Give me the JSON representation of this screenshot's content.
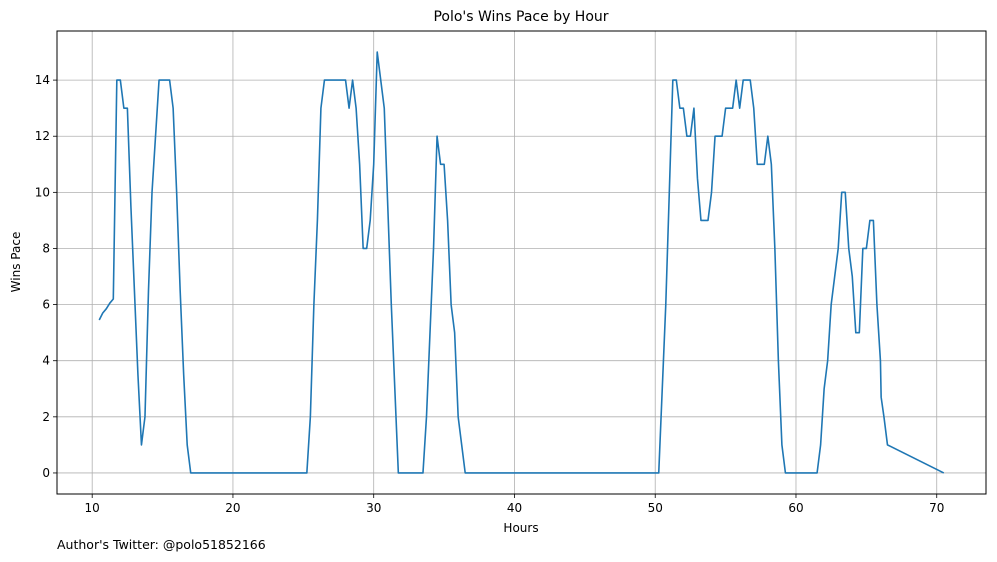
{
  "chart_data": {
    "type": "line",
    "title": "Polo's Wins Pace by Hour",
    "xlabel": "Hours",
    "ylabel": "Wins Pace",
    "xlim": [
      7.5,
      73.5
    ],
    "ylim": [
      -0.75,
      15.75
    ],
    "xticks": [
      10,
      20,
      30,
      40,
      50,
      60,
      70
    ],
    "yticks": [
      0,
      2,
      4,
      6,
      8,
      10,
      12,
      14
    ],
    "grid": true,
    "line_color": "#1f77b4",
    "series": [
      {
        "x": [
          10.5,
          10.75,
          11.0,
          11.25,
          11.5,
          11.75,
          12.0,
          12.25,
          12.5,
          12.75,
          13.0,
          13.25,
          13.5,
          13.75,
          14.0,
          14.25,
          14.5,
          14.75,
          15.0,
          15.25,
          15.5,
          15.75,
          16.0,
          16.25,
          16.5,
          16.75,
          17.0,
          17.25,
          25.25,
          25.5,
          25.75,
          26.0,
          26.25,
          26.5,
          26.75,
          27.0,
          27.25,
          27.5,
          27.75,
          28.0,
          28.25,
          28.5,
          28.75,
          29.0,
          29.25,
          29.5,
          29.75,
          30.0,
          30.25,
          30.5,
          30.75,
          31.0,
          31.25,
          31.5,
          31.75,
          32.0,
          33.5,
          33.75,
          34.0,
          34.25,
          34.5,
          34.75,
          35.0,
          35.25,
          35.5,
          35.75,
          36.0,
          36.25,
          36.5,
          36.75,
          50.25,
          50.5,
          50.75,
          51.0,
          51.25,
          51.5,
          51.75,
          52.0,
          52.25,
          52.5,
          52.75,
          53.0,
          53.25,
          53.5,
          53.75,
          54.0,
          54.25,
          54.5,
          54.75,
          55.0,
          55.25,
          55.5,
          55.75,
          56.0,
          56.25,
          56.5,
          56.75,
          57.0,
          57.25,
          57.5,
          57.75,
          58.0,
          58.25,
          58.5,
          58.75,
          59.0,
          59.25,
          61.5,
          61.75,
          62.0,
          62.25,
          62.5,
          62.75,
          63.0,
          63.25,
          63.5,
          63.75,
          64.0,
          64.25,
          64.5,
          64.75,
          65.0,
          65.25,
          65.5,
          65.75,
          66.0,
          66.05,
          66.25,
          66.5,
          70.5
        ],
        "y": [
          5.45,
          5.7,
          5.85,
          6.05,
          6.2,
          14.0,
          14.0,
          13.0,
          13.0,
          9.5,
          6.5,
          3.5,
          1.0,
          2.0,
          6.5,
          10.0,
          12.0,
          14.0,
          14.0,
          14.0,
          14.0,
          13.0,
          10.0,
          6.5,
          3.5,
          1.0,
          0.0,
          0.0,
          0.0,
          2.0,
          6.0,
          9.0,
          13.0,
          14.0,
          14.0,
          14.0,
          14.0,
          14.0,
          14.0,
          14.0,
          13.0,
          14.0,
          13.0,
          11.0,
          8.0,
          8.0,
          9.0,
          11.0,
          15.0,
          14.0,
          13.0,
          9.5,
          6.0,
          3.0,
          0.0,
          0.0,
          0.0,
          2.0,
          5.0,
          8.0,
          12.0,
          11.0,
          11.0,
          9.0,
          6.0,
          5.0,
          2.0,
          1.0,
          0.0,
          0.0,
          0.0,
          3.0,
          6.0,
          10.0,
          14.0,
          14.0,
          13.0,
          13.0,
          12.0,
          12.0,
          13.0,
          10.5,
          9.0,
          9.0,
          9.0,
          10.0,
          12.0,
          12.0,
          12.0,
          13.0,
          13.0,
          13.0,
          14.0,
          13.0,
          14.0,
          14.0,
          14.0,
          13.0,
          11.0,
          11.0,
          11.0,
          12.0,
          11.0,
          8.0,
          4.0,
          1.0,
          0.0,
          0.0,
          1.0,
          3.0,
          4.0,
          6.0,
          7.0,
          8.0,
          10.0,
          10.0,
          8.0,
          7.0,
          5.0,
          5.0,
          8.0,
          8.0,
          9.0,
          9.0,
          6.0,
          4.0,
          2.7,
          2.0,
          1.0,
          0.0
        ]
      }
    ],
    "footer": "Author's Twitter: @polo51852166"
  }
}
